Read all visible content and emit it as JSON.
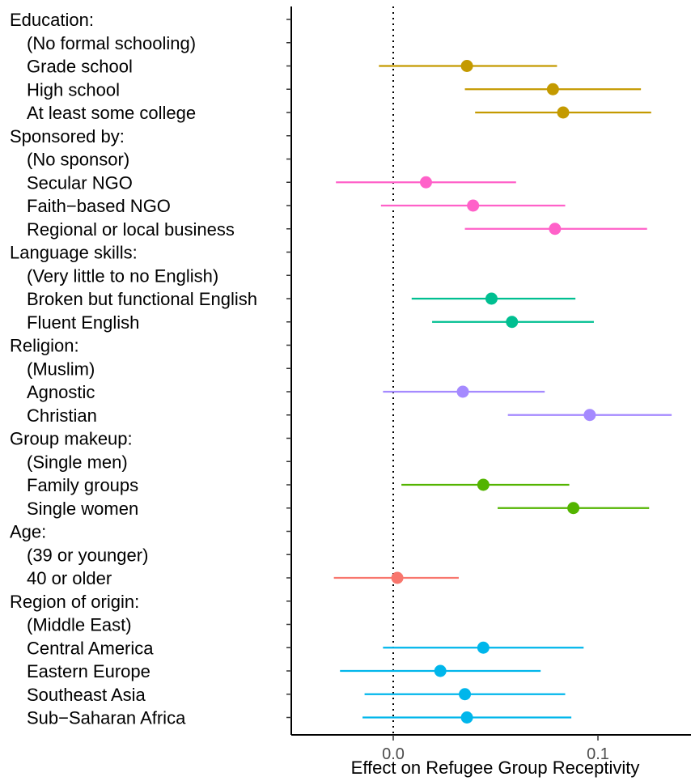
{
  "chart_data": {
    "type": "scatter",
    "subtype": "coefficient-plot-horizontal-with-error-bars",
    "xlabel": "Effect on Refugee Group Receptivity",
    "xlim": [
      -0.05,
      0.145
    ],
    "x_ticks": [
      0.0,
      0.1
    ],
    "x_tick_labels": [
      "0.0",
      "0.1"
    ],
    "reference_line": {
      "x": 0.0,
      "style": "dotted"
    },
    "grid": false,
    "legend": "none",
    "groups": [
      {
        "name": "Education:",
        "color": "#C49A00",
        "rows": [
          {
            "label": "(No formal schooling)",
            "estimate": null,
            "low": null,
            "high": null
          },
          {
            "label": "Grade school",
            "estimate": 0.036,
            "low": -0.007,
            "high": 0.08
          },
          {
            "label": "High school",
            "estimate": 0.078,
            "low": 0.035,
            "high": 0.121
          },
          {
            "label": "At least some college",
            "estimate": 0.083,
            "low": 0.04,
            "high": 0.126
          }
        ]
      },
      {
        "name": "Sponsored by:",
        "color": "#FF61C9",
        "rows": [
          {
            "label": "(No sponsor)",
            "estimate": null,
            "low": null,
            "high": null
          },
          {
            "label": "Secular NGO",
            "estimate": 0.016,
            "low": -0.028,
            "high": 0.06
          },
          {
            "label": "Faith−based NGO",
            "estimate": 0.039,
            "low": -0.006,
            "high": 0.084
          },
          {
            "label": "Regional or local business",
            "estimate": 0.079,
            "low": 0.035,
            "high": 0.124
          }
        ]
      },
      {
        "name": "Language skills:",
        "color": "#00BF91",
        "rows": [
          {
            "label": "(Very little to no English)",
            "estimate": null,
            "low": null,
            "high": null
          },
          {
            "label": "Broken but functional English",
            "estimate": 0.048,
            "low": 0.009,
            "high": 0.089
          },
          {
            "label": "Fluent English",
            "estimate": 0.058,
            "low": 0.019,
            "high": 0.098
          }
        ]
      },
      {
        "name": "Religion:",
        "color": "#A58AFF",
        "rows": [
          {
            "label": "(Muslim)",
            "estimate": null,
            "low": null,
            "high": null
          },
          {
            "label": "Agnostic",
            "estimate": 0.034,
            "low": -0.005,
            "high": 0.074
          },
          {
            "label": "Christian",
            "estimate": 0.096,
            "low": 0.056,
            "high": 0.136
          }
        ]
      },
      {
        "name": "Group makeup:",
        "color": "#53B400",
        "rows": [
          {
            "label": "(Single men)",
            "estimate": null,
            "low": null,
            "high": null
          },
          {
            "label": "Family groups",
            "estimate": 0.044,
            "low": 0.004,
            "high": 0.086
          },
          {
            "label": "Single women",
            "estimate": 0.088,
            "low": 0.051,
            "high": 0.125
          }
        ]
      },
      {
        "name": "Age:",
        "color": "#F8766D",
        "rows": [
          {
            "label": "(39 or younger)",
            "estimate": null,
            "low": null,
            "high": null
          },
          {
            "label": "40 or older",
            "estimate": 0.002,
            "low": -0.029,
            "high": 0.032
          }
        ]
      },
      {
        "name": "Region of origin:",
        "color": "#00B6EB",
        "rows": [
          {
            "label": "(Middle East)",
            "estimate": null,
            "low": null,
            "high": null
          },
          {
            "label": "Central America",
            "estimate": 0.044,
            "low": -0.005,
            "high": 0.093
          },
          {
            "label": "Eastern Europe",
            "estimate": 0.023,
            "low": -0.026,
            "high": 0.072
          },
          {
            "label": "Southeast Asia",
            "estimate": 0.035,
            "low": -0.014,
            "high": 0.084
          },
          {
            "label": "Sub−Saharan Africa",
            "estimate": 0.036,
            "low": -0.015,
            "high": 0.087
          }
        ]
      }
    ]
  }
}
